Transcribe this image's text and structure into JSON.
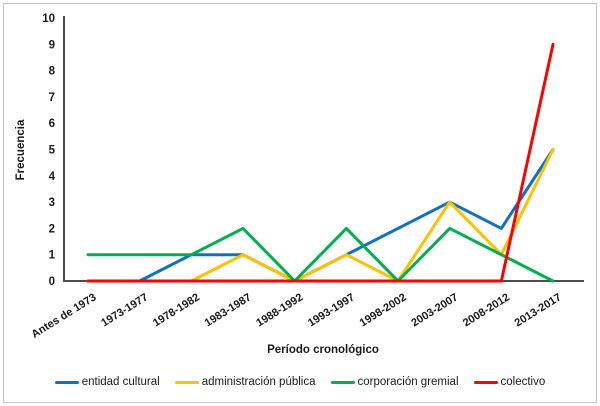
{
  "chart_data": {
    "type": "line",
    "title": "",
    "xlabel": "Período cronológico",
    "ylabel": "Frecuencia",
    "ylim": [
      0,
      10
    ],
    "yticks": [
      0,
      1,
      2,
      3,
      4,
      5,
      6,
      7,
      8,
      9,
      10
    ],
    "grid": false,
    "legend_position": "bottom",
    "categories": [
      "Antes de 1973",
      "1973-1977",
      "1978-1982",
      "1983-1987",
      "1988-1992",
      "1993-1997",
      "1998-2002",
      "2003-2007",
      "2008-2012",
      "2013-2017"
    ],
    "series": [
      {
        "name": "entidad cultural",
        "color": "#0e72c4",
        "values": [
          0,
          0,
          1,
          1,
          0,
          1,
          2,
          3,
          2,
          5
        ]
      },
      {
        "name": "administración pública",
        "color": "#ffc000",
        "values": [
          0,
          0,
          0,
          1,
          0,
          1,
          0,
          3,
          1,
          5
        ]
      },
      {
        "name": "corporación gremial",
        "color": "#00b050",
        "values": [
          1,
          1,
          1,
          2,
          0,
          2,
          0,
          2,
          1,
          0
        ]
      },
      {
        "name": "colectivo",
        "color": "#ff0000",
        "values": [
          0,
          0,
          0,
          0,
          0,
          0,
          0,
          0,
          0,
          9
        ]
      }
    ],
    "axis_color": "#4d4d4d",
    "tick_color": "#1a1a1a"
  }
}
